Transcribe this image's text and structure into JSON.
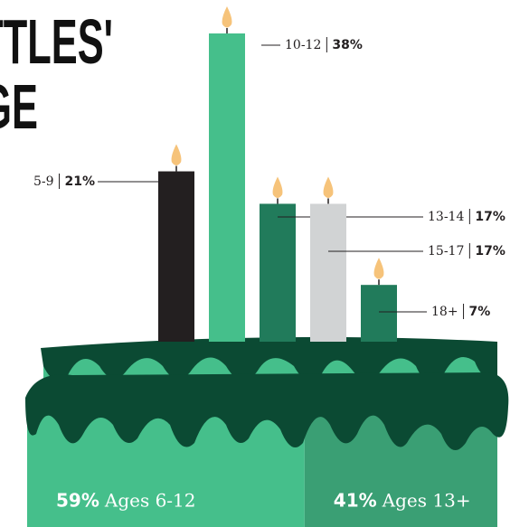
{
  "chart_data": {
    "type": "bar",
    "title_lines": [
      "LITTLES'",
      "AGE"
    ],
    "categories": [
      "5-9",
      "10-12",
      "13-14",
      "15-17",
      "18+"
    ],
    "values": [
      21,
      38,
      17,
      17,
      7
    ],
    "value_labels": [
      "21%",
      "38%",
      "17%",
      "17%",
      "7%"
    ],
    "colors": [
      "#231f20",
      "#45bf8b",
      "#217b5b",
      "#d1d3d4",
      "#217b5b"
    ],
    "summary": [
      {
        "value": 59,
        "value_label": "59%",
        "label": "Ages 6-12",
        "color": "#45bf8b"
      },
      {
        "value": 41,
        "value_label": "41%",
        "label": "Ages 13+",
        "color": "#3a9f74"
      }
    ]
  }
}
